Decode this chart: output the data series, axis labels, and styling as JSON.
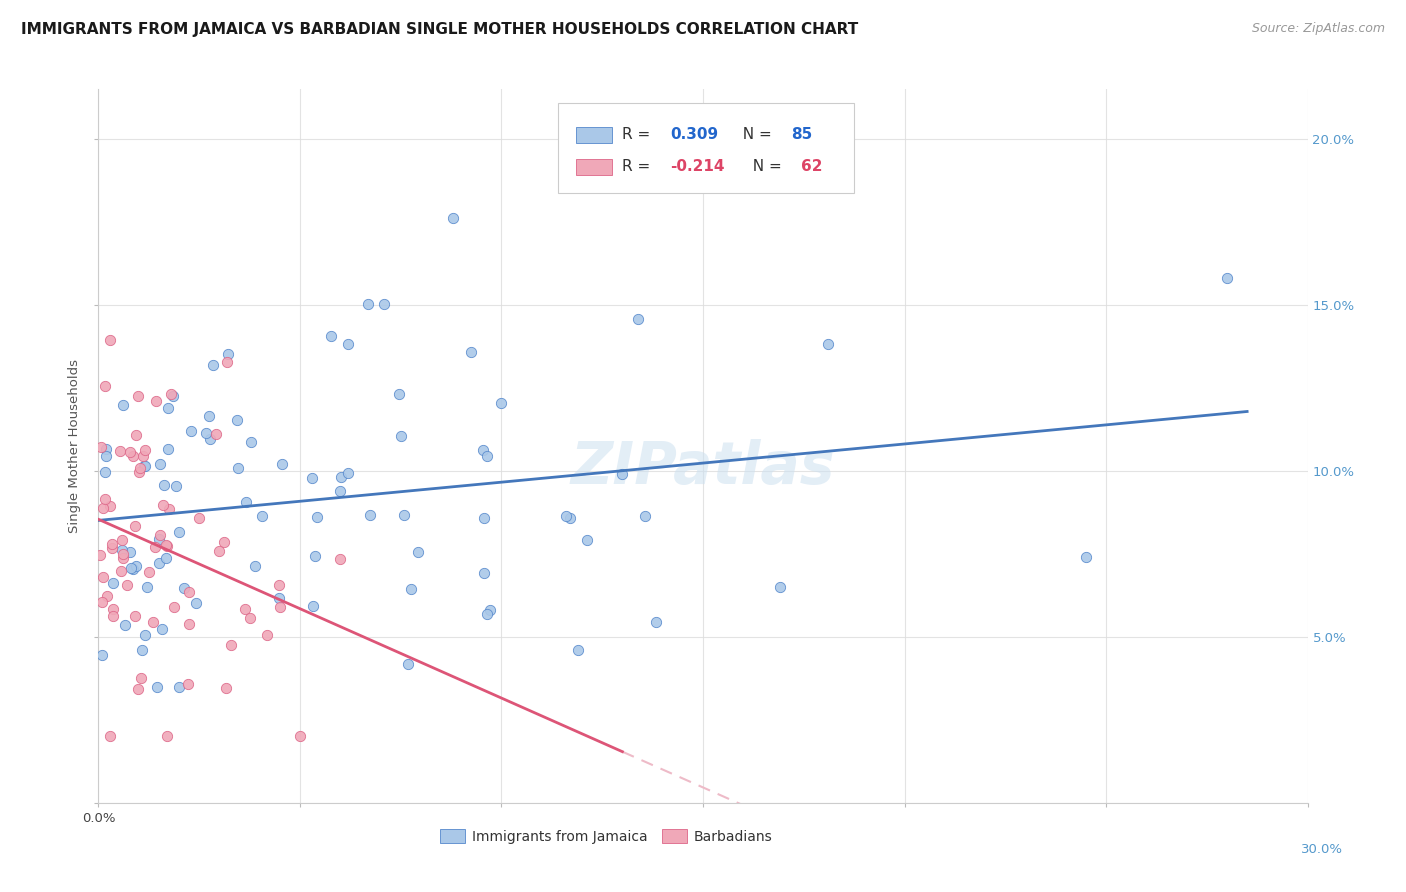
{
  "title": "IMMIGRANTS FROM JAMAICA VS BARBADIAN SINGLE MOTHER HOUSEHOLDS CORRELATION CHART",
  "source": "Source: ZipAtlas.com",
  "ylabel": "Single Mother Households",
  "xlim": [
    0.0,
    0.3
  ],
  "ylim": [
    0.0,
    0.215
  ],
  "blue_color": "#aac8e8",
  "pink_color": "#f0a8b8",
  "blue_edge_color": "#5588cc",
  "pink_edge_color": "#dd6688",
  "blue_line_color": "#4477bb",
  "pink_line_color": "#dd5577",
  "pink_dash_color": "#eebbc8",
  "watermark_color": "#cce0f0",
  "legend_r_color": "#2266cc",
  "legend_n_color": "#2266cc",
  "legend_r2_color": "#dd4466",
  "legend_n2_color": "#dd4466",
  "right_axis_color": "#5599cc",
  "title_fontsize": 11,
  "tick_fontsize": 9.5,
  "legend_fontsize": 11
}
